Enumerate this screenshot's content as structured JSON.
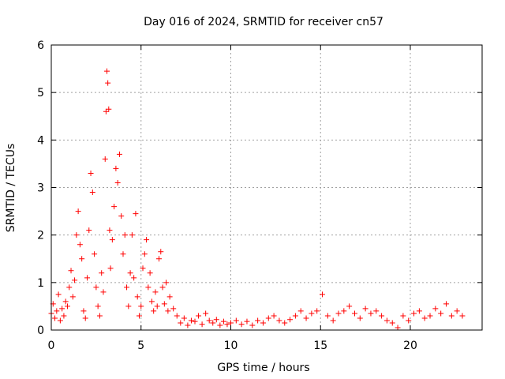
{
  "chart_data": {
    "type": "scatter",
    "title": "Day 016 of 2024, SRMTID for receiver cn57",
    "xlabel": "GPS time / hours",
    "ylabel": "SRMTID / TECUs",
    "xlim": [
      0,
      24
    ],
    "ylim": [
      0,
      6
    ],
    "xticks": [
      0,
      5,
      10,
      15,
      20
    ],
    "xtick_labels": [
      "0",
      "5",
      "10",
      "15",
      "20"
    ],
    "yticks": [
      0,
      1,
      2,
      3,
      4,
      5,
      6
    ],
    "ytick_labels": [
      "0",
      "1",
      "2",
      "3",
      "4",
      "5",
      "6"
    ],
    "grid": true,
    "marker": "+",
    "color": "#ff0000",
    "series": [
      {
        "name": "SRMTID",
        "points": [
          [
            0.0,
            0.35
          ],
          [
            0.1,
            0.55
          ],
          [
            0.2,
            0.25
          ],
          [
            0.3,
            0.4
          ],
          [
            0.4,
            0.75
          ],
          [
            0.5,
            0.2
          ],
          [
            0.6,
            0.45
          ],
          [
            0.7,
            0.3
          ],
          [
            0.8,
            0.6
          ],
          [
            0.9,
            0.5
          ],
          [
            1.0,
            0.9
          ],
          [
            1.1,
            1.25
          ],
          [
            1.2,
            0.7
          ],
          [
            1.3,
            1.05
          ],
          [
            1.4,
            2.0
          ],
          [
            1.5,
            2.5
          ],
          [
            1.6,
            1.8
          ],
          [
            1.7,
            1.5
          ],
          [
            1.8,
            0.4
          ],
          [
            1.9,
            0.25
          ],
          [
            2.0,
            1.1
          ],
          [
            2.1,
            2.1
          ],
          [
            2.2,
            3.3
          ],
          [
            2.3,
            2.9
          ],
          [
            2.4,
            1.6
          ],
          [
            2.5,
            0.9
          ],
          [
            2.6,
            0.5
          ],
          [
            2.7,
            0.3
          ],
          [
            2.8,
            1.2
          ],
          [
            2.9,
            0.8
          ],
          [
            3.0,
            3.6
          ],
          [
            3.05,
            4.6
          ],
          [
            3.1,
            5.45
          ],
          [
            3.15,
            5.2
          ],
          [
            3.2,
            4.65
          ],
          [
            3.25,
            2.1
          ],
          [
            3.3,
            1.3
          ],
          [
            3.4,
            1.9
          ],
          [
            3.5,
            2.6
          ],
          [
            3.6,
            3.4
          ],
          [
            3.7,
            3.1
          ],
          [
            3.8,
            3.7
          ],
          [
            3.9,
            2.4
          ],
          [
            4.0,
            1.6
          ],
          [
            4.1,
            2.0
          ],
          [
            4.2,
            0.9
          ],
          [
            4.3,
            0.5
          ],
          [
            4.4,
            1.2
          ],
          [
            4.5,
            2.0
          ],
          [
            4.6,
            1.1
          ],
          [
            4.7,
            2.45
          ],
          [
            4.8,
            0.7
          ],
          [
            4.9,
            0.3
          ],
          [
            5.0,
            0.5
          ],
          [
            5.1,
            1.3
          ],
          [
            5.2,
            1.6
          ],
          [
            5.3,
            1.9
          ],
          [
            5.4,
            0.9
          ],
          [
            5.5,
            1.2
          ],
          [
            5.6,
            0.6
          ],
          [
            5.7,
            0.4
          ],
          [
            5.8,
            0.8
          ],
          [
            5.9,
            0.5
          ],
          [
            6.0,
            1.5
          ],
          [
            6.1,
            1.65
          ],
          [
            6.2,
            0.9
          ],
          [
            6.3,
            0.55
          ],
          [
            6.4,
            1.0
          ],
          [
            6.5,
            0.4
          ],
          [
            6.6,
            0.7
          ],
          [
            6.8,
            0.45
          ],
          [
            7.0,
            0.3
          ],
          [
            7.2,
            0.15
          ],
          [
            7.4,
            0.25
          ],
          [
            7.6,
            0.1
          ],
          [
            7.8,
            0.2
          ],
          [
            8.0,
            0.18
          ],
          [
            8.2,
            0.3
          ],
          [
            8.4,
            0.12
          ],
          [
            8.6,
            0.35
          ],
          [
            8.8,
            0.2
          ],
          [
            9.0,
            0.15
          ],
          [
            9.2,
            0.22
          ],
          [
            9.4,
            0.1
          ],
          [
            9.6,
            0.18
          ],
          [
            9.8,
            0.12
          ],
          [
            10.0,
            0.15
          ],
          [
            10.3,
            0.2
          ],
          [
            10.6,
            0.12
          ],
          [
            10.9,
            0.18
          ],
          [
            11.2,
            0.1
          ],
          [
            11.5,
            0.2
          ],
          [
            11.8,
            0.15
          ],
          [
            12.1,
            0.25
          ],
          [
            12.4,
            0.3
          ],
          [
            12.7,
            0.2
          ],
          [
            13.0,
            0.15
          ],
          [
            13.3,
            0.22
          ],
          [
            13.6,
            0.3
          ],
          [
            13.9,
            0.4
          ],
          [
            14.2,
            0.25
          ],
          [
            14.5,
            0.35
          ],
          [
            14.8,
            0.4
          ],
          [
            15.1,
            0.75
          ],
          [
            15.4,
            0.3
          ],
          [
            15.7,
            0.2
          ],
          [
            16.0,
            0.35
          ],
          [
            16.3,
            0.4
          ],
          [
            16.6,
            0.5
          ],
          [
            16.9,
            0.35
          ],
          [
            17.2,
            0.25
          ],
          [
            17.5,
            0.45
          ],
          [
            17.8,
            0.35
          ],
          [
            18.1,
            0.4
          ],
          [
            18.4,
            0.3
          ],
          [
            18.7,
            0.2
          ],
          [
            19.0,
            0.15
          ],
          [
            19.3,
            0.05
          ],
          [
            19.6,
            0.3
          ],
          [
            19.9,
            0.2
          ],
          [
            20.2,
            0.35
          ],
          [
            20.5,
            0.4
          ],
          [
            20.8,
            0.25
          ],
          [
            21.1,
            0.3
          ],
          [
            21.4,
            0.45
          ],
          [
            21.7,
            0.35
          ],
          [
            22.0,
            0.55
          ],
          [
            22.3,
            0.3
          ],
          [
            22.6,
            0.4
          ],
          [
            22.9,
            0.3
          ]
        ]
      }
    ]
  }
}
